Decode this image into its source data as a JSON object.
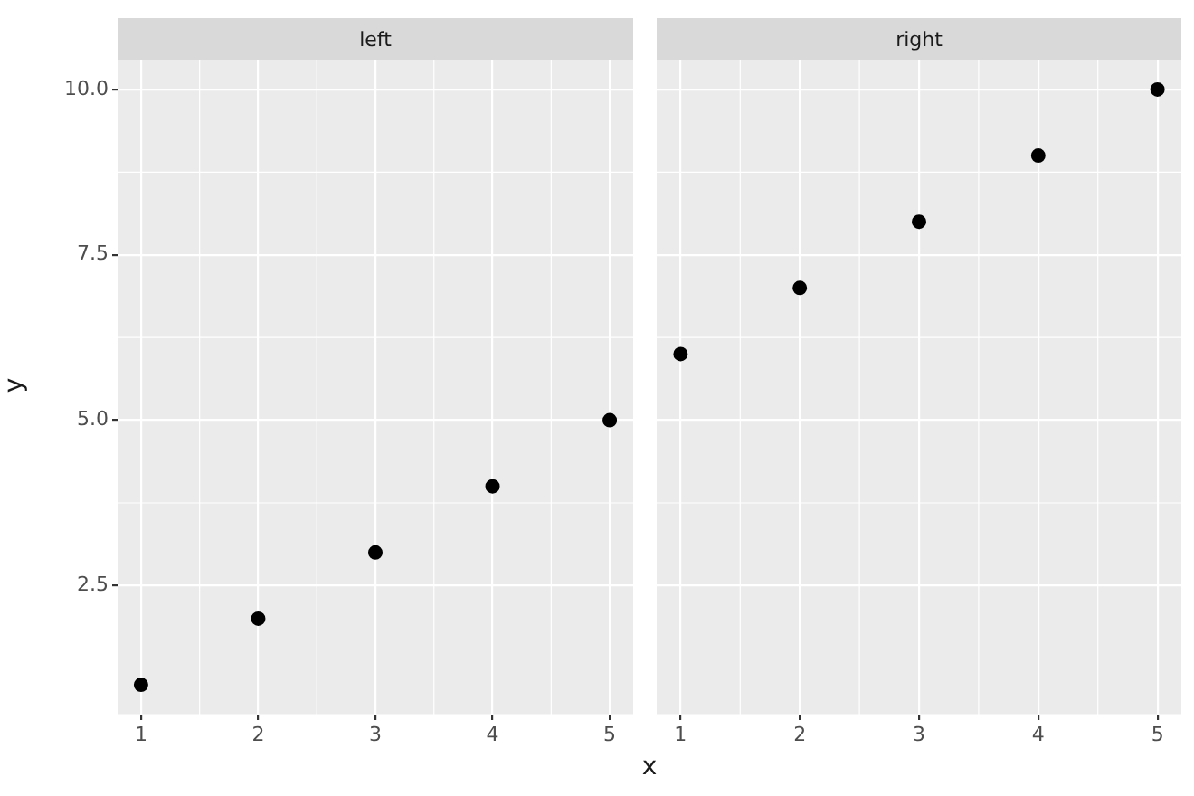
{
  "chart_data": [
    {
      "type": "scatter",
      "title": "left",
      "ylabel": "y",
      "xlabel": "x",
      "x": [
        1,
        2,
        3,
        4,
        5
      ],
      "values": [
        1,
        2,
        3,
        4,
        5
      ],
      "color": "#000000",
      "marker": "circle",
      "xlim": [
        0.8,
        5.2
      ],
      "ylim": [
        0.55,
        10.45
      ],
      "xticks": [
        1,
        2,
        3,
        4,
        5
      ],
      "yticks": [
        {
          "value": 2.5,
          "label": "2.5"
        },
        {
          "value": 5,
          "label": "5.0"
        },
        {
          "value": 7.5,
          "label": "7.5"
        },
        {
          "value": 10,
          "label": "10.0"
        }
      ],
      "grid": true,
      "legend": false
    },
    {
      "type": "scatter",
      "title": "right",
      "x": [
        1,
        2,
        3,
        4,
        5
      ],
      "values": [
        6,
        7,
        8,
        9,
        10
      ],
      "color": "#000000",
      "marker": "circle",
      "xlim": [
        0.8,
        5.2
      ],
      "ylim": [
        0.55,
        10.45
      ],
      "xticks": [
        1,
        2,
        3,
        4,
        5
      ],
      "yticks": [
        2.5,
        5,
        7.5,
        10
      ],
      "grid": true,
      "legend": false,
      "tick_labels": "x"
    }
  ]
}
